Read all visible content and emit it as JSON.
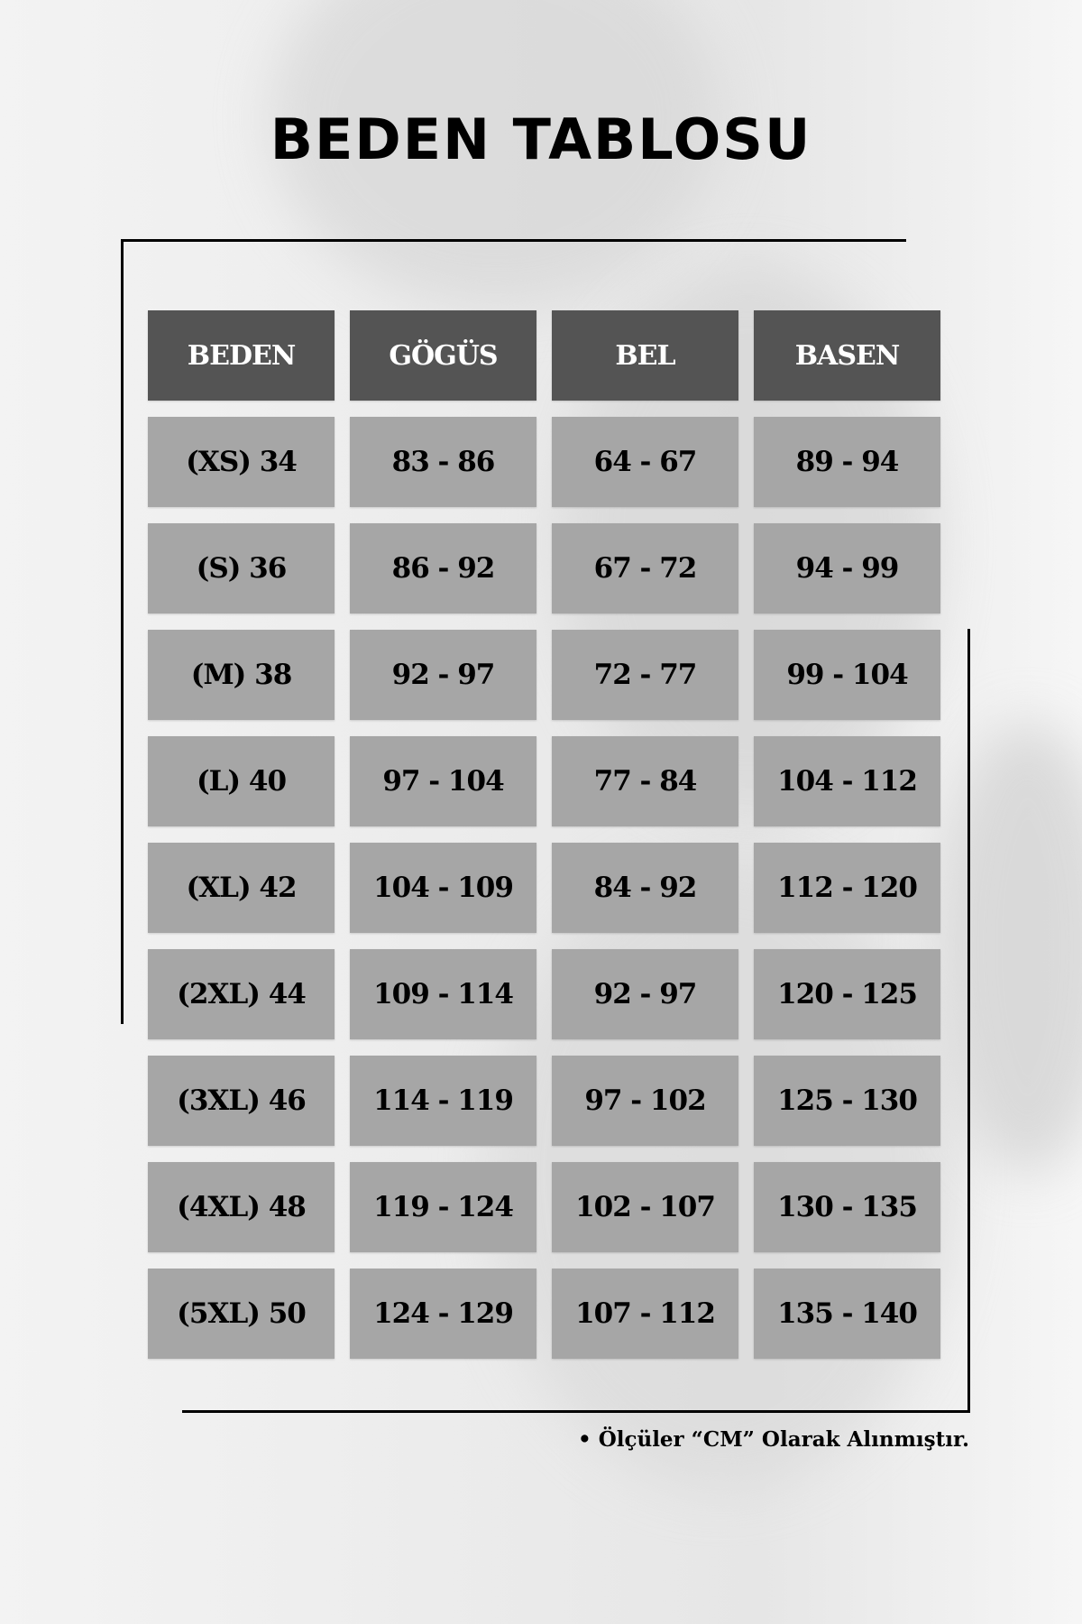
{
  "title": "BEDEN TABLOSU",
  "table": {
    "headers": [
      "BEDEN",
      "GÖGÜS",
      "BEL",
      "BASEN"
    ],
    "rows": [
      [
        "(XS) 34",
        "83 - 86",
        "64 - 67",
        "89 - 94"
      ],
      [
        "(S) 36",
        "86 - 92",
        "67 - 72",
        "94 - 99"
      ],
      [
        "(M) 38",
        "92 - 97",
        "72 - 77",
        "99 - 104"
      ],
      [
        "(L) 40",
        "97 - 104",
        "77 - 84",
        "104 - 112"
      ],
      [
        "(XL) 42",
        "104 - 109",
        "84 - 92",
        "112 - 120"
      ],
      [
        "(2XL) 44",
        "109 - 114",
        "92 - 97",
        "120 - 125"
      ],
      [
        "(3XL) 46",
        "114 - 119",
        "97 - 102",
        "125 - 130"
      ],
      [
        "(4XL) 48",
        "119 - 124",
        "102 - 107",
        "130 - 135"
      ],
      [
        "(5XL) 50",
        "124 - 129",
        "107 - 112",
        "135 - 140"
      ]
    ]
  },
  "footnote": "• Ölçüler “CM” Olarak Alınmıştır.",
  "colors": {
    "header_bg": "#545454",
    "cell_bg": "#a6a6a6"
  }
}
